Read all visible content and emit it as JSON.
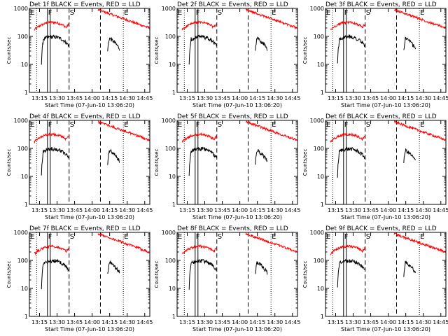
{
  "chart_data": [
    {
      "type": "line",
      "title": "Det 1f BLACK = Events, RED = LLD",
      "xlabel": "Start Time (07-Jun-10 13:06:20)",
      "ylabel": "Counts/sec",
      "scale": "log",
      "ylim": [
        1,
        1000
      ],
      "y_ticks": [
        "1",
        "10",
        "100",
        "1000"
      ],
      "x_ticks": [
        "13:15",
        "13:30",
        "13:45",
        "14:00",
        "14:15",
        "14:30",
        "14:45"
      ],
      "markers": [
        "E",
        "F",
        "S",
        "E"
      ],
      "series": [
        {
          "name": "BLACK = Events",
          "color": "#000000"
        },
        {
          "name": "RED = LLD",
          "color": "#ff0000"
        }
      ]
    },
    {
      "type": "line",
      "title": "Det 2f BLACK = Events, RED = LLD",
      "xlabel": "Start Time (07-Jun-10 13:06:20)",
      "ylabel": "Counts/sec",
      "scale": "log",
      "ylim": [
        1,
        1000
      ],
      "y_ticks": [
        "1",
        "10",
        "100",
        "1000"
      ],
      "x_ticks": [
        "13:15",
        "13:30",
        "13:45",
        "14:00",
        "14:15",
        "14:30",
        "14:45"
      ],
      "markers": [
        "E",
        "F",
        "S",
        "E"
      ],
      "series": [
        {
          "name": "BLACK = Events",
          "color": "#000000"
        },
        {
          "name": "RED = LLD",
          "color": "#ff0000"
        }
      ]
    },
    {
      "type": "line",
      "title": "Det 3f BLACK = Events, RED = LLD",
      "xlabel": "Start Time (07-Jun-10 13:06:20)",
      "ylabel": "Counts/sec",
      "scale": "log",
      "ylim": [
        1,
        1000
      ],
      "y_ticks": [
        "1",
        "10",
        "100",
        "1000"
      ],
      "x_ticks": [
        "13:15",
        "13:30",
        "13:45",
        "14:00",
        "14:15",
        "14:30",
        "14:45"
      ],
      "markers": [
        "E",
        "F",
        "S",
        "E"
      ],
      "series": [
        {
          "name": "BLACK = Events",
          "color": "#000000"
        },
        {
          "name": "RED = LLD",
          "color": "#ff0000"
        }
      ]
    },
    {
      "type": "line",
      "title": "Det 4f BLACK = Events, RED = LLD",
      "xlabel": "Start Time (07-Jun-10 13:06:20)",
      "ylabel": "Counts/sec",
      "scale": "log",
      "ylim": [
        1,
        1000
      ],
      "y_ticks": [
        "1",
        "10",
        "100",
        "1000"
      ],
      "x_ticks": [
        "13:15",
        "13:30",
        "13:45",
        "14:00",
        "14:15",
        "14:30",
        "14:45"
      ],
      "markers": [
        "E",
        "F",
        "S",
        "E"
      ],
      "series": [
        {
          "name": "BLACK = Events",
          "color": "#000000"
        },
        {
          "name": "RED = LLD",
          "color": "#ff0000"
        }
      ]
    },
    {
      "type": "line",
      "title": "Det 5f BLACK = Events, RED = LLD",
      "xlabel": "Start Time (07-Jun-10 13:06:20)",
      "ylabel": "Counts/sec",
      "scale": "log",
      "ylim": [
        1,
        1000
      ],
      "y_ticks": [
        "1",
        "10",
        "100",
        "1000"
      ],
      "x_ticks": [
        "13:15",
        "13:30",
        "13:45",
        "14:00",
        "14:15",
        "14:30",
        "14:45"
      ],
      "markers": [
        "E",
        "F",
        "S",
        "E"
      ],
      "series": [
        {
          "name": "BLACK = Events",
          "color": "#000000"
        },
        {
          "name": "RED = LLD",
          "color": "#ff0000"
        }
      ]
    },
    {
      "type": "line",
      "title": "Det 6f BLACK = Events, RED = LLD",
      "xlabel": "Start Time (07-Jun-10 13:06:20)",
      "ylabel": "Counts/sec",
      "scale": "log",
      "ylim": [
        1,
        1000
      ],
      "y_ticks": [
        "1",
        "10",
        "100",
        "1000"
      ],
      "x_ticks": [
        "13:15",
        "13:30",
        "13:45",
        "14:00",
        "14:15",
        "14:30",
        "14:45"
      ],
      "markers": [
        "E",
        "F",
        "S",
        "E"
      ],
      "series": [
        {
          "name": "BLACK = Events",
          "color": "#000000"
        },
        {
          "name": "RED = LLD",
          "color": "#ff0000"
        }
      ]
    },
    {
      "type": "line",
      "title": "Det 7f BLACK = Events, RED = LLD",
      "xlabel": "Start Time (07-Jun-10 13:06:20)",
      "ylabel": "Counts/sec",
      "scale": "log",
      "ylim": [
        1,
        1000
      ],
      "y_ticks": [
        "1",
        "10",
        "100",
        "1000"
      ],
      "x_ticks": [
        "13:15",
        "13:30",
        "13:45",
        "14:00",
        "14:15",
        "14:30",
        "14:45"
      ],
      "markers": [
        "E",
        "F",
        "S",
        "E"
      ],
      "series": [
        {
          "name": "BLACK = Events",
          "color": "#000000"
        },
        {
          "name": "RED = LLD",
          "color": "#ff0000"
        }
      ]
    },
    {
      "type": "line",
      "title": "Det 8f BLACK = Events, RED = LLD",
      "xlabel": "Start Time (07-Jun-10 13:06:20)",
      "ylabel": "Counts/sec",
      "scale": "log",
      "ylim": [
        1,
        1000
      ],
      "y_ticks": [
        "1",
        "10",
        "100",
        "1000"
      ],
      "x_ticks": [
        "13:15",
        "13:30",
        "13:45",
        "14:00",
        "14:15",
        "14:30",
        "14:45"
      ],
      "markers": [
        "E",
        "F",
        "S",
        "E"
      ],
      "series": [
        {
          "name": "BLACK = Events",
          "color": "#000000"
        },
        {
          "name": "RED = LLD",
          "color": "#ff0000"
        }
      ]
    },
    {
      "type": "line",
      "title": "Det 9f BLACK = Events, RED = LLD",
      "xlabel": "Start Time (07-Jun-10 13:06:20)",
      "ylabel": "Counts/sec",
      "scale": "log",
      "ylim": [
        1,
        1000
      ],
      "y_ticks": [
        "1",
        "10",
        "100",
        "1000"
      ],
      "x_ticks": [
        "13:15",
        "13:30",
        "13:45",
        "14:00",
        "14:15",
        "14:30",
        "14:45"
      ],
      "markers": [
        "E",
        "F",
        "S",
        "E"
      ],
      "series": [
        {
          "name": "BLACK = Events",
          "color": "#000000"
        },
        {
          "name": "RED = LLD",
          "color": "#ff0000"
        }
      ]
    }
  ]
}
